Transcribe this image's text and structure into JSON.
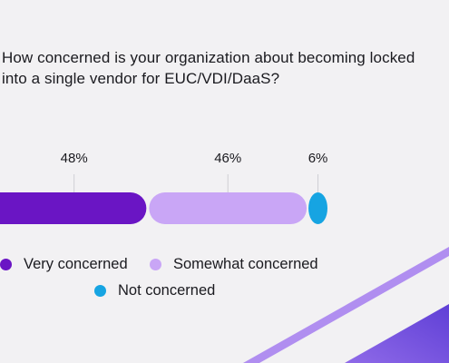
{
  "chart_data": {
    "type": "bar",
    "stacked": true,
    "orientation": "horizontal",
    "title": "How concerned is your organization about becoming locked into a single vendor for EUC/VDI/DaaS?",
    "categories": [
      "Very concerned",
      "Somewhat concerned",
      "Not concerned"
    ],
    "values": [
      48,
      46,
      6
    ],
    "value_labels": [
      "48%",
      "46%",
      "6%"
    ],
    "colors": [
      "#6a15c4",
      "#c9a6f6",
      "#16a4e2"
    ],
    "unit": "%",
    "legend_position": "bottom-left",
    "grid": false
  },
  "legend": {
    "items": [
      {
        "label": "Very concerned",
        "color": "#6a15c4"
      },
      {
        "label": "Somewhat concerned",
        "color": "#c9a6f6"
      },
      {
        "label": "Not concerned",
        "color": "#16a4e2"
      }
    ]
  },
  "decor": {
    "stripe_colors": [
      "#b08ef0",
      "#6b49dc"
    ]
  }
}
